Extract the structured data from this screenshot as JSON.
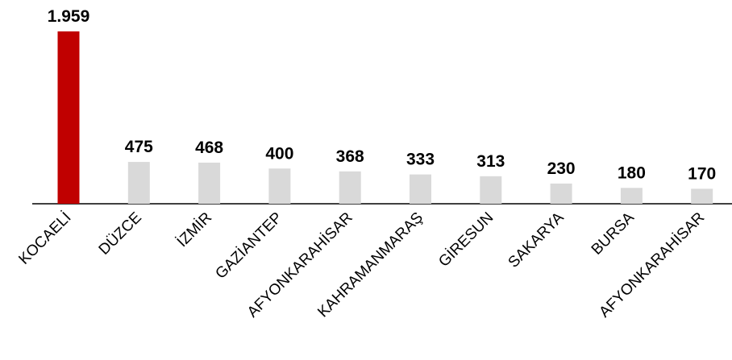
{
  "chart_data": {
    "type": "bar",
    "title": "",
    "xlabel": "",
    "ylabel": "",
    "categories": [
      "KOCAELİ",
      "DÜZCE",
      "İZMİR",
      "GAZİANTEP",
      "AFYONKARAHİSAR",
      "KAHRAMANMARAŞ",
      "GİRESUN",
      "SAKARYA",
      "BURSA",
      "AFYONKARAHİSAR"
    ],
    "values": [
      1959,
      475,
      468,
      400,
      368,
      333,
      313,
      230,
      180,
      170
    ],
    "value_labels": [
      "1.959",
      "475",
      "468",
      "400",
      "368",
      "333",
      "313",
      "230",
      "180",
      "170"
    ],
    "ylim": [
      0,
      1959
    ],
    "grid": false,
    "legend": "none",
    "colors": {
      "highlight": "#C00000",
      "default": "#D9D9D9",
      "axis": "#000000"
    },
    "highlight_index": 0
  }
}
